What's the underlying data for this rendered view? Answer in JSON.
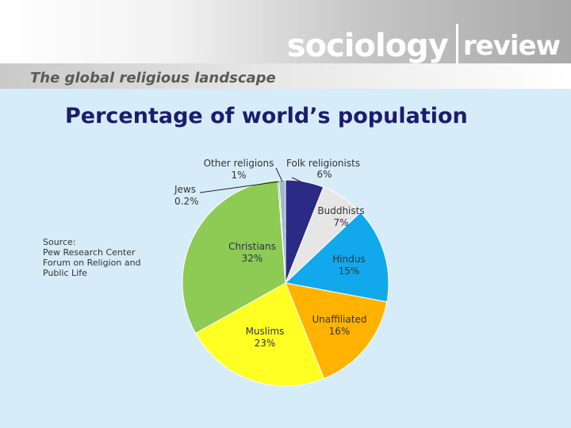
{
  "header": {
    "logo_word1": "sociology",
    "logo_word2": "review"
  },
  "slide": {
    "subtitle": "The global religious landscape",
    "title": "Percentage of world’s population",
    "source_lines": [
      "Source:",
      "Pew Research Center",
      "Forum on Religion and",
      "Public Life"
    ]
  },
  "colors": {
    "background": "#d6ecf8",
    "title": "#1c1c6e"
  },
  "chart_data": {
    "type": "pie",
    "title": "",
    "slices": [
      {
        "name": "Folk religionists",
        "pct_label": "6%",
        "value": 6,
        "color": "#2b2b86"
      },
      {
        "name": "Buddhists",
        "pct_label": "7%",
        "value": 7,
        "color": "#e6e6e6"
      },
      {
        "name": "Hindus",
        "pct_label": "15%",
        "value": 15,
        "color": "#12a8ec"
      },
      {
        "name": "Unaffiliated",
        "pct_label": "16%",
        "value": 16,
        "color": "#ffb300"
      },
      {
        "name": "Muslims",
        "pct_label": "23%",
        "value": 23,
        "color": "#ffff24"
      },
      {
        "name": "Christians",
        "pct_label": "32%",
        "value": 32,
        "color": "#8dcb55"
      },
      {
        "name": "Jews",
        "pct_label": "0.2%",
        "value": 0.2,
        "color": "#2d8a2d"
      },
      {
        "name": "Other religions",
        "pct_label": "1%",
        "value": 1,
        "color": "#9eb8c8"
      }
    ]
  }
}
